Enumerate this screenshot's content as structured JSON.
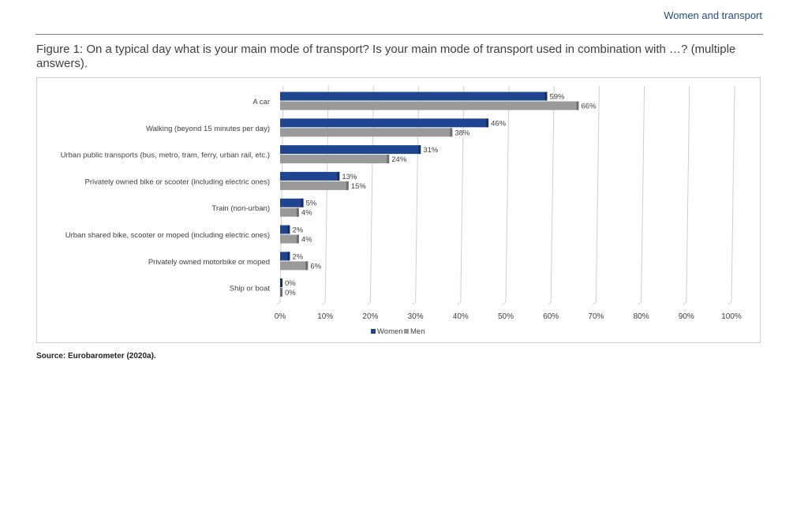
{
  "header": {
    "title": "Women and transport"
  },
  "figure": {
    "caption": "Figure 1: On a typical day what is your main mode of transport? Is your main mode of transport used in combination with …? (multiple answers).",
    "source": "Source: Eurobarometer (2020a)."
  },
  "colors": {
    "women": "#1f4591",
    "men": "#9a9a9a",
    "grid": "#cfcfcf",
    "accent": "#1f4e8c"
  },
  "chart_data": {
    "type": "bar",
    "orientation": "horizontal",
    "categories": [
      "A car",
      "Walking (beyond 15 minutes per day)",
      "Urban public transports (bus, metro, tram, ferry, urban rail, etc.)",
      "Privately owned bike or scooter (including electric ones)",
      "Train (non-urban)",
      "Urban shared bike, scooter or moped (including electric ones)",
      "Privately owned motorbike or moped",
      "Ship or boat"
    ],
    "series": [
      {
        "name": "Women",
        "values": [
          59,
          46,
          31,
          13,
          5,
          2,
          2,
          0
        ]
      },
      {
        "name": "Men",
        "values": [
          66,
          38,
          24,
          15,
          4,
          4,
          6,
          0
        ]
      }
    ],
    "xlim": [
      0,
      100
    ],
    "xticks": [
      "0%",
      "10%",
      "20%",
      "30%",
      "40%",
      "50%",
      "60%",
      "70%",
      "80%",
      "90%",
      "100%"
    ],
    "value_suffix": "%",
    "legend_position": "bottom",
    "grid": true
  }
}
